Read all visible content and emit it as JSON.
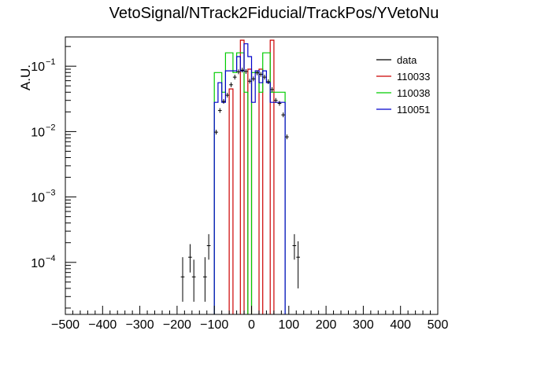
{
  "chart_data": {
    "type": "histogram",
    "title": "VetoSignal/NTrack2Fiducial/TrackPos/YVetoNu",
    "xlabel": "",
    "ylabel": "A.U.",
    "xlim": [
      -500,
      500
    ],
    "ylim": [
      1.6e-05,
      0.28
    ],
    "yscale": "log",
    "grid": false,
    "legend_position": "top-right",
    "x_ticks": [
      -500,
      -400,
      -300,
      -200,
      -100,
      0,
      100,
      200,
      300,
      400,
      500
    ],
    "x_tick_labels": [
      "−500",
      "−400",
      "−300",
      "−200",
      "−100",
      "0",
      "100",
      "200",
      "300",
      "400",
      "500"
    ],
    "y_ticks": [
      0.0001,
      0.001,
      0.01,
      0.1
    ],
    "y_tick_labels": [
      {
        "base": "10",
        "exp": "−4"
      },
      {
        "base": "10",
        "exp": "−3"
      },
      {
        "base": "10",
        "exp": "−2"
      },
      {
        "base": "10",
        "exp": "−1"
      }
    ],
    "bin_width": 10,
    "colors": {
      "data": "#000000",
      "110033": "#cc0000",
      "110038": "#00cc00",
      "110051": "#0000cc"
    },
    "series": [
      {
        "name": "data",
        "kind": "points",
        "points": [
          {
            "x": -185,
            "y": 6e-05,
            "lo": 2.5e-05,
            "hi": 0.00012
          },
          {
            "x": -165,
            "y": 0.00012,
            "lo": 7e-05,
            "hi": 0.00019
          },
          {
            "x": -155,
            "y": 6e-05,
            "lo": 2.5e-05,
            "hi": 0.00011
          },
          {
            "x": -125,
            "y": 6e-05,
            "lo": 2.5e-05,
            "hi": 0.00012
          },
          {
            "x": -115,
            "y": 0.00018,
            "lo": 0.00011,
            "hi": 0.00027
          },
          {
            "x": -95,
            "y": 0.0098
          },
          {
            "x": -85,
            "y": 0.021
          },
          {
            "x": -75,
            "y": 0.029
          },
          {
            "x": -65,
            "y": 0.036
          },
          {
            "x": -55,
            "y": 0.052
          },
          {
            "x": -45,
            "y": 0.068
          },
          {
            "x": -35,
            "y": 0.082
          },
          {
            "x": -25,
            "y": 0.087
          },
          {
            "x": -15,
            "y": 0.083
          },
          {
            "x": -5,
            "y": 0.059
          },
          {
            "x": 5,
            "y": 0.064
          },
          {
            "x": 15,
            "y": 0.079
          },
          {
            "x": 25,
            "y": 0.075
          },
          {
            "x": 35,
            "y": 0.068
          },
          {
            "x": 45,
            "y": 0.058
          },
          {
            "x": 55,
            "y": 0.044
          },
          {
            "x": 65,
            "y": 0.03
          },
          {
            "x": 75,
            "y": 0.027
          },
          {
            "x": 85,
            "y": 0.018
          },
          {
            "x": 95,
            "y": 0.0083
          },
          {
            "x": 115,
            "y": 0.00018,
            "lo": 0.00011,
            "hi": 0.00027
          },
          {
            "x": 125,
            "y": 0.00012,
            "lo": 4e-05,
            "hi": 0.00021
          }
        ]
      },
      {
        "name": "110033",
        "kind": "step",
        "bins": [
          {
            "x0": -60,
            "x1": -50,
            "y": 0.045
          },
          {
            "x0": -30,
            "x1": -20,
            "y": 0.25
          },
          {
            "x0": -10,
            "x1": 0,
            "y": 0.09
          },
          {
            "x0": 20,
            "x1": 30,
            "y": 0.09
          },
          {
            "x0": 50,
            "x1": 60,
            "y": 0.25
          }
        ]
      },
      {
        "name": "110038",
        "kind": "step",
        "bins": [
          {
            "x0": -100,
            "x1": -90,
            "y": 0.08
          },
          {
            "x0": -90,
            "x1": -80,
            "y": 0.08
          },
          {
            "x0": -80,
            "x1": -70,
            "y": 0.04
          },
          {
            "x0": -70,
            "x1": -60,
            "y": 0.16
          },
          {
            "x0": -60,
            "x1": -50,
            "y": 0.16
          },
          {
            "x0": -50,
            "x1": -40,
            "y": 0.08
          },
          {
            "x0": -40,
            "x1": -30,
            "y": 0.16
          },
          {
            "x0": -30,
            "x1": -20,
            "y": 0.16
          },
          {
            "x0": -20,
            "x1": -10,
            "y": 0.04
          },
          {
            "x0": 0,
            "x1": 10,
            "y": 0.08
          },
          {
            "x0": 10,
            "x1": 20,
            "y": 0.08
          },
          {
            "x0": 20,
            "x1": 30,
            "y": 0.04
          },
          {
            "x0": 30,
            "x1": 40,
            "y": 0.16
          },
          {
            "x0": 40,
            "x1": 50,
            "y": 0.16
          },
          {
            "x0": 50,
            "x1": 60,
            "y": 0.04
          },
          {
            "x0": 60,
            "x1": 70,
            "y": 0.04
          },
          {
            "x0": 70,
            "x1": 80,
            "y": 0.04
          },
          {
            "x0": 80,
            "x1": 90,
            "y": 0.04
          }
        ]
      },
      {
        "name": "110051",
        "kind": "step",
        "bins": [
          {
            "x0": -100,
            "x1": -90,
            "y": 0.028
          },
          {
            "x0": -90,
            "x1": -80,
            "y": 0.056
          },
          {
            "x0": -80,
            "x1": -70,
            "y": 0.028
          },
          {
            "x0": -70,
            "x1": -60,
            "y": 0.085
          },
          {
            "x0": -60,
            "x1": -50,
            "y": 0.085
          },
          {
            "x0": -50,
            "x1": -40,
            "y": 0.085
          },
          {
            "x0": -40,
            "x1": -30,
            "y": 0.14
          },
          {
            "x0": -30,
            "x1": -20,
            "y": 0.085
          },
          {
            "x0": -20,
            "x1": -10,
            "y": 0.22
          },
          {
            "x0": -10,
            "x1": 0,
            "y": 0.14
          },
          {
            "x0": 0,
            "x1": 10,
            "y": 0.028
          },
          {
            "x0": 10,
            "x1": 20,
            "y": 0.085
          },
          {
            "x0": 20,
            "x1": 30,
            "y": 0.056
          },
          {
            "x0": 30,
            "x1": 40,
            "y": 0.085
          },
          {
            "x0": 40,
            "x1": 50,
            "y": 0.056
          },
          {
            "x0": 50,
            "x1": 60,
            "y": 0.028
          },
          {
            "x0": 60,
            "x1": 70,
            "y": 0.028
          },
          {
            "x0": 70,
            "x1": 80,
            "y": 0.028
          },
          {
            "x0": 80,
            "x1": 90,
            "y": 0.028
          }
        ]
      }
    ]
  }
}
